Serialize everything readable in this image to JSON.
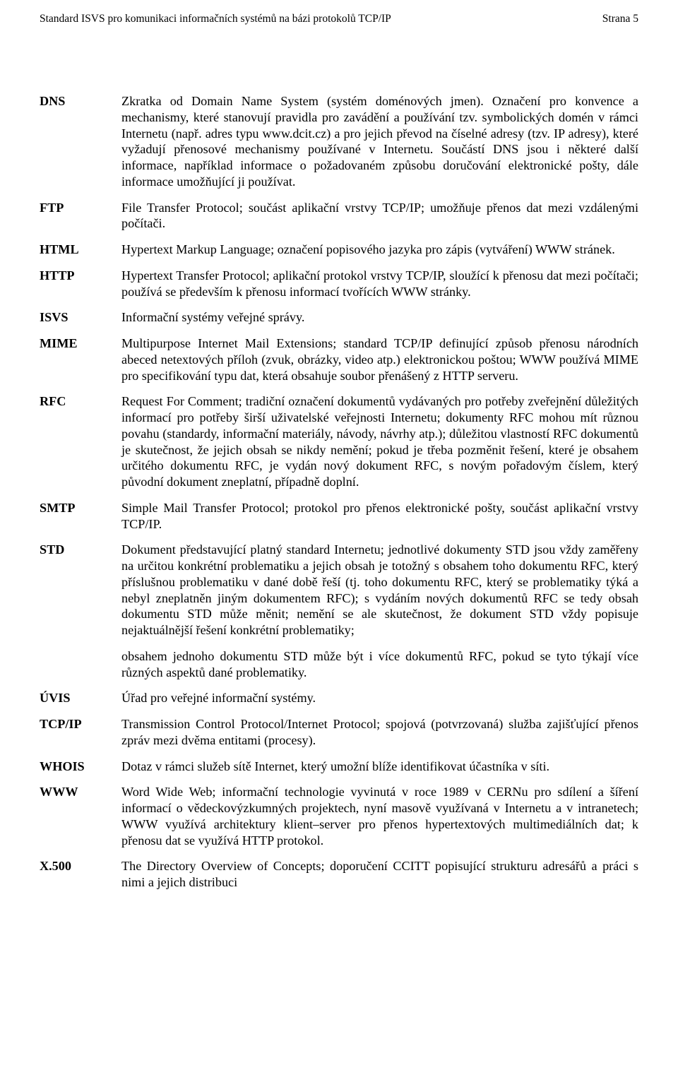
{
  "header": {
    "left": "Standard ISVS pro komunikaci informačních systémů na bázi protokolů TCP/IP",
    "right": "Strana 5"
  },
  "definitions": [
    {
      "term": "DNS",
      "paras": [
        "Zkratka od Domain Name System (systém doménových jmen). Označení pro konvence a mechanismy, které stanovují pravidla pro zavádění a používání tzv. symbolických domén v rámci Internetu (např. adres typu www.dcit.cz) a pro jejich převod na číselné adresy (tzv. IP adresy), které vyžadují přenosové mechanismy používané v Internetu. Součástí DNS jsou i některé další informace, například informace o požadovaném způsobu doručování elektronické pošty, dále informace umožňující ji používat."
      ]
    },
    {
      "term": "FTP",
      "paras": [
        "File Transfer Protocol; součást aplikační vrstvy TCP/IP; umožňuje přenos dat mezi vzdálenými počítači."
      ]
    },
    {
      "term": "HTML",
      "paras": [
        "Hypertext Markup Language; označení popisového jazyka pro zápis (vytváření) WWW stránek."
      ]
    },
    {
      "term": "HTTP",
      "paras": [
        "Hypertext Transfer Protocol; aplikační protokol vrstvy TCP/IP, sloužící k přenosu dat mezi počítači; používá se především k přenosu informací tvořících WWW stránky."
      ]
    },
    {
      "term": "ISVS",
      "paras": [
        "Informační systémy veřejné správy."
      ]
    },
    {
      "term": "MIME",
      "paras": [
        "Multipurpose Internet Mail Extensions; standard TCP/IP definující způsob přenosu národních abeced netextových příloh (zvuk, obrázky, video atp.) elektronickou poštou; WWW používá MIME pro specifikování typu dat, která obsahuje soubor přenášený z HTTP serveru."
      ]
    },
    {
      "term": "RFC",
      "paras": [
        "Request For Comment; tradiční označení dokumentů vydávaných pro potřeby zveřejnění důležitých informací pro potřeby širší uživatelské veřejnosti Internetu; dokumenty RFC mohou mít různou povahu (standardy, informační materiály, návody, návrhy atp.); důležitou vlastností RFC dokumentů je skutečnost, že jejich obsah se nikdy nemění; pokud je třeba pozměnit řešení, které je obsahem určitého dokumentu RFC, je vydán nový dokument RFC, s novým pořadovým číslem, který původní dokument zneplatní, případně doplní."
      ]
    },
    {
      "term": "SMTP",
      "paras": [
        "Simple Mail Transfer Protocol; protokol pro přenos elektronické pošty, součást aplikační vrstvy TCP/IP."
      ]
    },
    {
      "term": "STD",
      "paras": [
        "Dokument představující platný standard Internetu; jednotlivé dokumenty STD jsou vždy zaměřeny na určitou konkrétní problematiku a jejich obsah je totožný s obsahem toho dokumentu RFC, který příslušnou problematiku v dané době řeší (tj. toho dokumentu RFC, který se problematiky týká a nebyl zneplatněn jiným dokumentem RFC); s vydáním nových dokumentů RFC se tedy obsah dokumentu STD může měnit; nemění se ale skutečnost, že dokument STD vždy popisuje nejaktuálnější řešení konkrétní problematiky;",
        "obsahem jednoho dokumentu STD může být i více dokumentů RFC, pokud se tyto týkají více různých aspektů dané problematiky."
      ]
    },
    {
      "term": "ÚVIS",
      "paras": [
        "Úřad pro veřejné informační systémy."
      ]
    },
    {
      "term": "TCP/IP",
      "paras": [
        "Transmission Control Protocol/Internet Protocol; spojová (potvrzovaná) služba zajišťující přenos zpráv mezi dvěma entitami (procesy)."
      ]
    },
    {
      "term": "WHOIS",
      "paras": [
        "Dotaz v rámci služeb sítě Internet, který umožní blíže identifikovat účastníka v síti."
      ]
    },
    {
      "term": "WWW",
      "paras": [
        "Word Wide Web; informační technologie vyvinutá v roce 1989 v CERNu pro sdílení a šíření informací o vědeckovýzkumných projektech, nyní masově využívaná v Internetu a v intranetech; WWW využívá architektury klient–server pro přenos hypertextových multimediálních dat; k přenosu dat se využívá HTTP protokol."
      ]
    },
    {
      "term": "X.500",
      "paras": [
        "The Directory Overview of Concepts; doporučení CCITT popisující strukturu adresářů a práci s nimi a jejich distribuci"
      ]
    }
  ]
}
